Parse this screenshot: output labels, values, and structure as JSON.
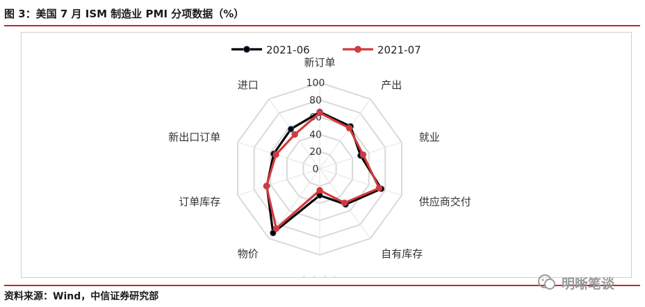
{
  "figure": {
    "title": "图 3：美国 7 月 ISM 制造业 PMI 分项数据（%）",
    "source": "资料来源：Wind，中信证券研究部",
    "watermark": "明晰笔谈"
  },
  "chart_data": {
    "type": "radar",
    "axes": [
      "新订单",
      "产出",
      "就业",
      "供应商交付",
      "自有库存",
      "客户库存",
      "物价",
      "订单库存",
      "新出口订单",
      "进口"
    ],
    "rlim": [
      0,
      100
    ],
    "ticks": [
      0,
      20,
      40,
      60,
      80,
      100
    ],
    "grid": true,
    "legend_position": "top-center",
    "series": [
      {
        "name": "2021-06",
        "color": "#000000",
        "values": [
          66.0,
          60.8,
          49.9,
          75.1,
          51.1,
          30.8,
          92.1,
          64.5,
          56.1,
          56.9
        ]
      },
      {
        "name": "2021-07",
        "color": "#d13a3f",
        "values": [
          64.9,
          58.4,
          52.9,
          72.5,
          48.9,
          25.0,
          85.7,
          65.0,
          53.4,
          49.2
        ]
      }
    ]
  }
}
